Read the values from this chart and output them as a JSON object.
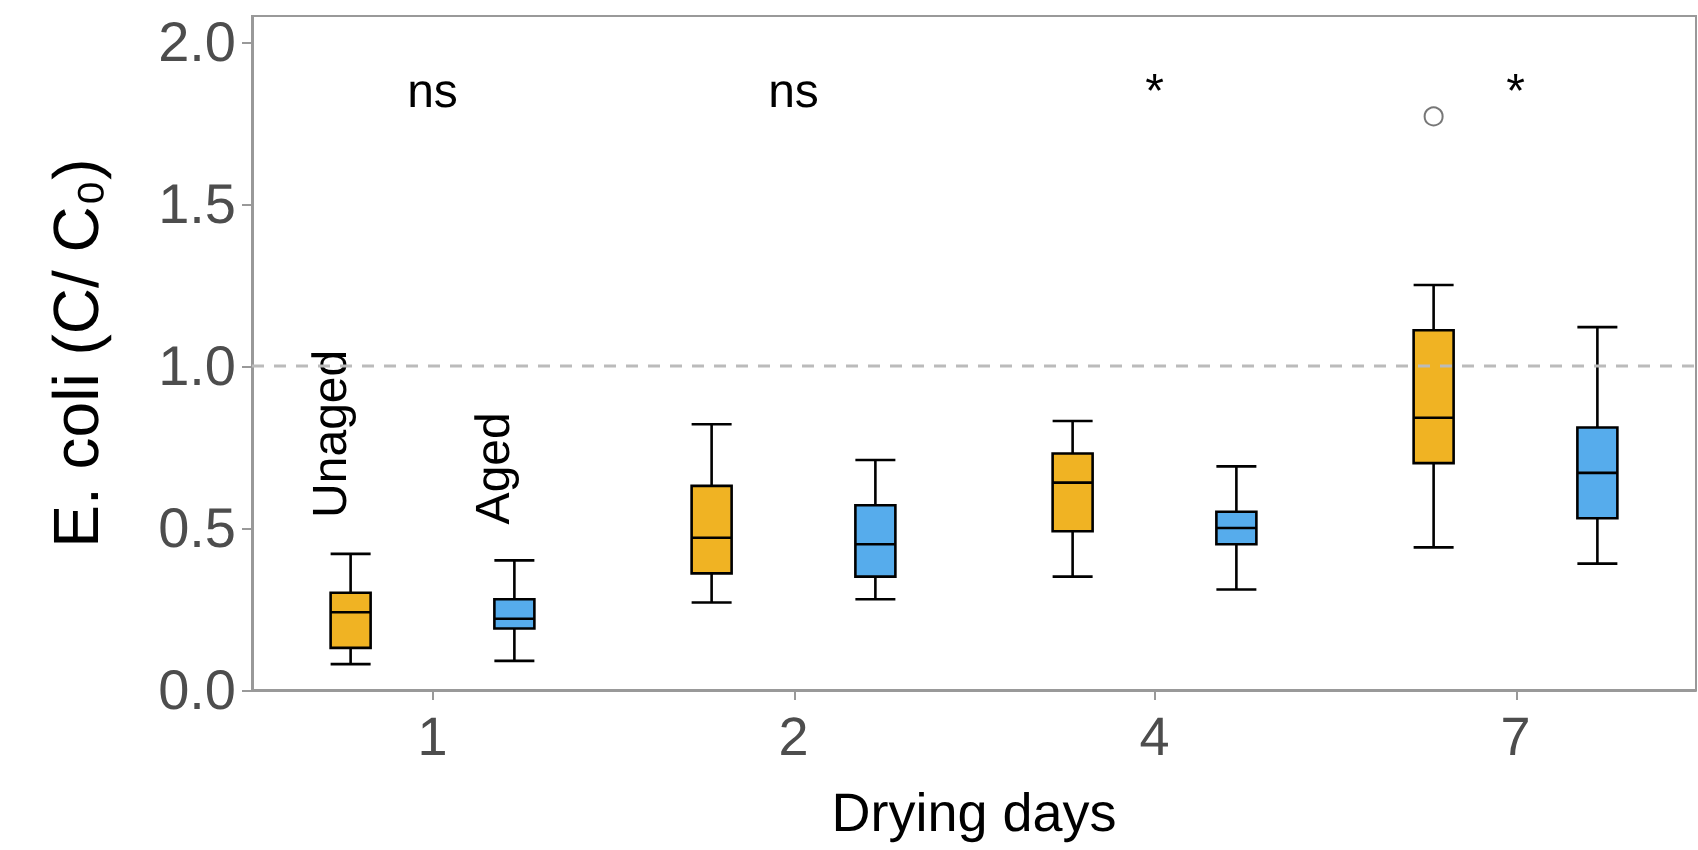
{
  "chart_data": {
    "type": "box",
    "xlabel": "Drying days",
    "ylabel": "E. coli (C/ C₀)",
    "categories": [
      "1",
      "2",
      "4",
      "7"
    ],
    "ylim": [
      0,
      2.08
    ],
    "yticks": [
      {
        "value": 0,
        "label": "0.0"
      },
      {
        "value": 0.5,
        "label": "0.5"
      },
      {
        "value": 1,
        "label": "1.0"
      },
      {
        "value": 1.5,
        "label": "1.5"
      },
      {
        "value": 2,
        "label": "2.0"
      }
    ],
    "grid": false,
    "legend": false,
    "series": [
      {
        "name": "Unaged",
        "color": "#f0b323",
        "boxes": [
          {
            "low": 0.08,
            "q1": 0.13,
            "median": 0.24,
            "q3": 0.3,
            "high": 0.42
          },
          {
            "low": 0.27,
            "q1": 0.36,
            "median": 0.47,
            "q3": 0.63,
            "high": 0.82
          },
          {
            "low": 0.35,
            "q1": 0.49,
            "median": 0.64,
            "q3": 0.73,
            "high": 0.83
          },
          {
            "low": 0.44,
            "q1": 0.7,
            "median": 0.84,
            "q3": 1.11,
            "high": 1.25,
            "outliers": [
              1.77
            ]
          }
        ]
      },
      {
        "name": "Aged",
        "color": "#56acec",
        "boxes": [
          {
            "low": 0.09,
            "q1": 0.19,
            "median": 0.22,
            "q3": 0.28,
            "high": 0.4
          },
          {
            "low": 0.28,
            "q1": 0.35,
            "median": 0.45,
            "q3": 0.57,
            "high": 0.71
          },
          {
            "low": 0.31,
            "q1": 0.45,
            "median": 0.5,
            "q3": 0.55,
            "high": 0.69
          },
          {
            "low": 0.39,
            "q1": 0.53,
            "median": 0.67,
            "q3": 0.81,
            "high": 1.12
          }
        ]
      }
    ],
    "ref_lines": [
      {
        "axis": "y",
        "value": 1,
        "color": "#bbbbbb",
        "line_style": "dashed"
      }
    ],
    "annotations": [
      "ns",
      "ns",
      "*",
      "*"
    ]
  }
}
